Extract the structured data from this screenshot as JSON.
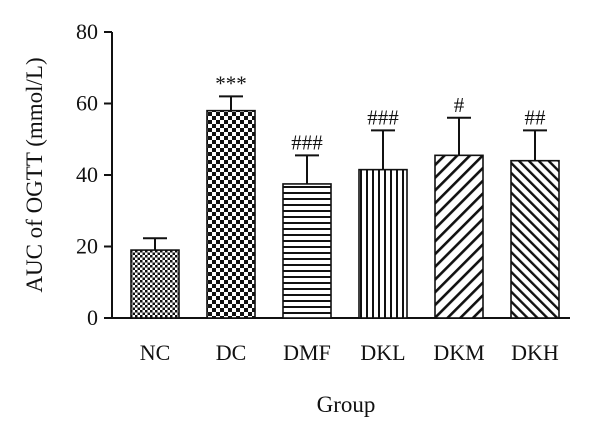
{
  "chart_data": {
    "type": "bar",
    "title": "",
    "xlabel": "Group",
    "ylabel": "AUC of OGTT (mmol/L)",
    "ylim": [
      0,
      80
    ],
    "yticks": [
      0,
      20,
      40,
      60,
      80
    ],
    "categories": [
      "NC",
      "DC",
      "DMF",
      "DKL",
      "DKM",
      "DKH"
    ],
    "series": [
      {
        "values": [
          19,
          58,
          37.5,
          41.5,
          45.5,
          44
        ],
        "error": [
          3.3,
          4.0,
          8.0,
          11.0,
          10.5,
          8.5
        ],
        "annotations": [
          "",
          "***",
          "###",
          "###",
          "#",
          "##"
        ],
        "patterns": [
          "checker-fine",
          "checker-coarse",
          "horizontal-lines",
          "vertical-lines",
          "diagonal-wide",
          "diagonal-back"
        ]
      }
    ],
    "grid": false,
    "legend": "none",
    "colors": {
      "bar_fill": "#ffffff",
      "pattern": "#111111",
      "axis": "#111111"
    }
  }
}
